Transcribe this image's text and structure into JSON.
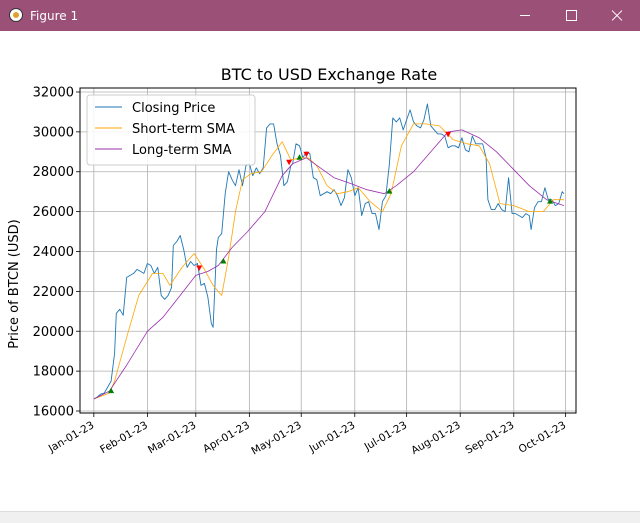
{
  "window": {
    "title": "Figure 1",
    "icon": "matplotlib-icon"
  },
  "chart_data": {
    "type": "line",
    "title": "BTC to USD Exchange Rate",
    "xlabel": "",
    "ylabel": "Price of BTCN (USD)",
    "xlim": [
      "2022-12-24",
      "2023-10-07"
    ],
    "ylim": [
      15900,
      32200
    ],
    "yticks": [
      16000,
      18000,
      20000,
      22000,
      24000,
      26000,
      28000,
      30000,
      32000
    ],
    "xticks": [
      {
        "date": "2023-01-01",
        "label": "Jan-01-23"
      },
      {
        "date": "2023-02-01",
        "label": "Feb-01-23"
      },
      {
        "date": "2023-03-01",
        "label": "Mar-01-23"
      },
      {
        "date": "2023-04-01",
        "label": "Apr-01-23"
      },
      {
        "date": "2023-05-01",
        "label": "May-01-23"
      },
      {
        "date": "2023-06-01",
        "label": "Jun-01-23"
      },
      {
        "date": "2023-07-01",
        "label": "Jul-01-23"
      },
      {
        "date": "2023-08-01",
        "label": "Aug-01-23"
      },
      {
        "date": "2023-09-01",
        "label": "Sep-01-23"
      },
      {
        "date": "2023-10-01",
        "label": "Oct-01-23"
      }
    ],
    "grid": true,
    "legend_position": "top-left",
    "series": [
      {
        "name": "Closing Price",
        "color": "#1f77b4",
        "points": [
          [
            "2023-01-01",
            16600
          ],
          [
            "2023-01-03",
            16700
          ],
          [
            "2023-01-05",
            16850
          ],
          [
            "2023-01-07",
            16900
          ],
          [
            "2023-01-09",
            17200
          ],
          [
            "2023-01-11",
            17500
          ],
          [
            "2023-01-13",
            18900
          ],
          [
            "2023-01-14",
            20900
          ],
          [
            "2023-01-16",
            21100
          ],
          [
            "2023-01-18",
            20800
          ],
          [
            "2023-01-20",
            22700
          ],
          [
            "2023-01-22",
            22800
          ],
          [
            "2023-01-24",
            22900
          ],
          [
            "2023-01-26",
            23100
          ],
          [
            "2023-01-28",
            23000
          ],
          [
            "2023-01-30",
            22900
          ],
          [
            "2023-02-01",
            23400
          ],
          [
            "2023-02-03",
            23300
          ],
          [
            "2023-02-05",
            22900
          ],
          [
            "2023-02-07",
            23200
          ],
          [
            "2023-02-09",
            21800
          ],
          [
            "2023-02-11",
            21600
          ],
          [
            "2023-02-13",
            21800
          ],
          [
            "2023-02-15",
            22200
          ],
          [
            "2023-02-16",
            24300
          ],
          [
            "2023-02-18",
            24500
          ],
          [
            "2023-02-20",
            24800
          ],
          [
            "2023-02-22",
            24100
          ],
          [
            "2023-02-24",
            23200
          ],
          [
            "2023-02-26",
            23500
          ],
          [
            "2023-02-28",
            23300
          ],
          [
            "2023-03-02",
            23400
          ],
          [
            "2023-03-04",
            22300
          ],
          [
            "2023-03-06",
            22400
          ],
          [
            "2023-03-08",
            21700
          ],
          [
            "2023-03-10",
            20400
          ],
          [
            "2023-03-11",
            20200
          ],
          [
            "2023-03-13",
            24100
          ],
          [
            "2023-03-14",
            24700
          ],
          [
            "2023-03-16",
            24900
          ],
          [
            "2023-03-18",
            26900
          ],
          [
            "2023-03-20",
            28000
          ],
          [
            "2023-03-22",
            27600
          ],
          [
            "2023-03-24",
            27300
          ],
          [
            "2023-03-26",
            28100
          ],
          [
            "2023-03-28",
            27300
          ],
          [
            "2023-03-30",
            28300
          ],
          [
            "2023-04-01",
            28400
          ],
          [
            "2023-04-03",
            27800
          ],
          [
            "2023-04-05",
            28200
          ],
          [
            "2023-04-07",
            27900
          ],
          [
            "2023-04-09",
            28200
          ],
          [
            "2023-04-11",
            30200
          ],
          [
            "2023-04-13",
            30400
          ],
          [
            "2023-04-15",
            30400
          ],
          [
            "2023-04-17",
            29400
          ],
          [
            "2023-04-19",
            28800
          ],
          [
            "2023-04-21",
            27300
          ],
          [
            "2023-04-23",
            27500
          ],
          [
            "2023-04-25",
            28300
          ],
          [
            "2023-04-26",
            28400
          ],
          [
            "2023-04-28",
            29400
          ],
          [
            "2023-04-30",
            29300
          ],
          [
            "2023-05-02",
            28700
          ],
          [
            "2023-05-04",
            29000
          ],
          [
            "2023-05-06",
            28900
          ],
          [
            "2023-05-08",
            27700
          ],
          [
            "2023-05-10",
            27600
          ],
          [
            "2023-05-12",
            26800
          ],
          [
            "2023-05-14",
            26900
          ],
          [
            "2023-05-16",
            27000
          ],
          [
            "2023-05-18",
            26900
          ],
          [
            "2023-05-20",
            27100
          ],
          [
            "2023-05-22",
            26800
          ],
          [
            "2023-05-24",
            26300
          ],
          [
            "2023-05-26",
            26700
          ],
          [
            "2023-05-28",
            28100
          ],
          [
            "2023-05-30",
            27700
          ],
          [
            "2023-06-01",
            26800
          ],
          [
            "2023-06-03",
            27200
          ],
          [
            "2023-06-05",
            25800
          ],
          [
            "2023-06-07",
            26400
          ],
          [
            "2023-06-09",
            26500
          ],
          [
            "2023-06-11",
            25900
          ],
          [
            "2023-06-13",
            25900
          ],
          [
            "2023-06-15",
            25100
          ],
          [
            "2023-06-17",
            26500
          ],
          [
            "2023-06-19",
            26800
          ],
          [
            "2023-06-21",
            28400
          ],
          [
            "2023-06-23",
            30700
          ],
          [
            "2023-06-25",
            30500
          ],
          [
            "2023-06-27",
            30700
          ],
          [
            "2023-06-29",
            30100
          ],
          [
            "2023-07-01",
            30600
          ],
          [
            "2023-07-03",
            31100
          ],
          [
            "2023-07-05",
            30500
          ],
          [
            "2023-07-07",
            30300
          ],
          [
            "2023-07-09",
            30200
          ],
          [
            "2023-07-11",
            30600
          ],
          [
            "2023-07-13",
            31400
          ],
          [
            "2023-07-15",
            30300
          ],
          [
            "2023-07-17",
            30100
          ],
          [
            "2023-07-19",
            29900
          ],
          [
            "2023-07-21",
            29900
          ],
          [
            "2023-07-23",
            29800
          ],
          [
            "2023-07-25",
            29200
          ],
          [
            "2023-07-27",
            29300
          ],
          [
            "2023-07-29",
            29300
          ],
          [
            "2023-07-31",
            29200
          ],
          [
            "2023-08-02",
            29700
          ],
          [
            "2023-08-04",
            29100
          ],
          [
            "2023-08-06",
            29000
          ],
          [
            "2023-08-08",
            29800
          ],
          [
            "2023-08-10",
            29400
          ],
          [
            "2023-08-12",
            29400
          ],
          [
            "2023-08-14",
            29400
          ],
          [
            "2023-08-16",
            28700
          ],
          [
            "2023-08-17",
            26600
          ],
          [
            "2023-08-19",
            26100
          ],
          [
            "2023-08-21",
            26100
          ],
          [
            "2023-08-23",
            26400
          ],
          [
            "2023-08-25",
            26100
          ],
          [
            "2023-08-27",
            26000
          ],
          [
            "2023-08-29",
            27700
          ],
          [
            "2023-08-31",
            25900
          ],
          [
            "2023-09-02",
            25900
          ],
          [
            "2023-09-04",
            25800
          ],
          [
            "2023-09-06",
            25700
          ],
          [
            "2023-09-08",
            25900
          ],
          [
            "2023-09-10",
            25800
          ],
          [
            "2023-09-11",
            25100
          ],
          [
            "2023-09-13",
            26200
          ],
          [
            "2023-09-15",
            26500
          ],
          [
            "2023-09-17",
            26500
          ],
          [
            "2023-09-19",
            27200
          ],
          [
            "2023-09-21",
            26600
          ],
          [
            "2023-09-23",
            26600
          ],
          [
            "2023-09-25",
            26300
          ],
          [
            "2023-09-27",
            26400
          ],
          [
            "2023-09-29",
            27000
          ],
          [
            "2023-09-30",
            26900
          ]
        ]
      },
      {
        "name": "Short-term SMA",
        "color": "#ffa500",
        "points": [
          [
            "2023-01-01",
            16600
          ],
          [
            "2023-01-10",
            16900
          ],
          [
            "2023-01-13",
            17500
          ],
          [
            "2023-01-20",
            19700
          ],
          [
            "2023-01-27",
            21800
          ],
          [
            "2023-02-04",
            22900
          ],
          [
            "2023-02-10",
            22900
          ],
          [
            "2023-02-14",
            22300
          ],
          [
            "2023-02-21",
            23200
          ],
          [
            "2023-02-28",
            23900
          ],
          [
            "2023-03-06",
            23100
          ],
          [
            "2023-03-11",
            22300
          ],
          [
            "2023-03-16",
            21800
          ],
          [
            "2023-03-20",
            23700
          ],
          [
            "2023-03-24",
            26000
          ],
          [
            "2023-03-28",
            27600
          ],
          [
            "2023-04-02",
            27900
          ],
          [
            "2023-04-08",
            28000
          ],
          [
            "2023-04-14",
            28800
          ],
          [
            "2023-04-20",
            29500
          ],
          [
            "2023-04-25",
            28600
          ],
          [
            "2023-05-01",
            28700
          ],
          [
            "2023-05-05",
            28700
          ],
          [
            "2023-05-10",
            28300
          ],
          [
            "2023-05-16",
            27300
          ],
          [
            "2023-05-22",
            26900
          ],
          [
            "2023-05-28",
            27000
          ],
          [
            "2023-06-03",
            27200
          ],
          [
            "2023-06-10",
            26500
          ],
          [
            "2023-06-17",
            26000
          ],
          [
            "2023-06-22",
            26900
          ],
          [
            "2023-06-28",
            29300
          ],
          [
            "2023-07-05",
            30400
          ],
          [
            "2023-07-12",
            30400
          ],
          [
            "2023-07-20",
            30300
          ],
          [
            "2023-07-28",
            29600
          ],
          [
            "2023-08-05",
            29400
          ],
          [
            "2023-08-12",
            29300
          ],
          [
            "2023-08-18",
            28400
          ],
          [
            "2023-08-24",
            26400
          ],
          [
            "2023-09-01",
            26300
          ],
          [
            "2023-09-10",
            26000
          ],
          [
            "2023-09-18",
            26000
          ],
          [
            "2023-09-24",
            26600
          ],
          [
            "2023-09-30",
            26600
          ]
        ]
      },
      {
        "name": "Long-term SMA",
        "color": "#9b2fae",
        "points": [
          [
            "2023-01-01",
            16600
          ],
          [
            "2023-01-10",
            17000
          ],
          [
            "2023-01-20",
            18300
          ],
          [
            "2023-02-01",
            20000
          ],
          [
            "2023-02-10",
            20700
          ],
          [
            "2023-02-20",
            21800
          ],
          [
            "2023-03-01",
            22800
          ],
          [
            "2023-03-08",
            23000
          ],
          [
            "2023-03-14",
            23300
          ],
          [
            "2023-03-22",
            24200
          ],
          [
            "2023-03-31",
            25000
          ],
          [
            "2023-04-10",
            26000
          ],
          [
            "2023-04-20",
            27800
          ],
          [
            "2023-04-26",
            28400
          ],
          [
            "2023-05-04",
            28700
          ],
          [
            "2023-05-12",
            28200
          ],
          [
            "2023-05-20",
            27700
          ],
          [
            "2023-05-30",
            27400
          ],
          [
            "2023-06-08",
            27100
          ],
          [
            "2023-06-18",
            26900
          ],
          [
            "2023-06-25",
            27300
          ],
          [
            "2023-07-05",
            28000
          ],
          [
            "2023-07-15",
            29000
          ],
          [
            "2023-07-25",
            30000
          ],
          [
            "2023-08-02",
            30100
          ],
          [
            "2023-08-12",
            29700
          ],
          [
            "2023-08-22",
            29000
          ],
          [
            "2023-09-01",
            28100
          ],
          [
            "2023-09-10",
            27300
          ],
          [
            "2023-09-20",
            26600
          ],
          [
            "2023-09-30",
            26300
          ]
        ]
      }
    ],
    "buy_signals": {
      "color": "#008000",
      "marker": "triangle-up",
      "points": [
        [
          "2023-01-11",
          17000
        ],
        [
          "2023-03-17",
          23500
        ],
        [
          "2023-04-30",
          28700
        ],
        [
          "2023-06-21",
          27000
        ],
        [
          "2023-09-22",
          26500
        ]
      ]
    },
    "sell_signals": {
      "color": "#ff0000",
      "marker": "triangle-down",
      "points": [
        [
          "2023-03-03",
          23200
        ],
        [
          "2023-04-24",
          28500
        ],
        [
          "2023-05-04",
          28900
        ],
        [
          "2023-07-25",
          29900
        ]
      ]
    }
  }
}
